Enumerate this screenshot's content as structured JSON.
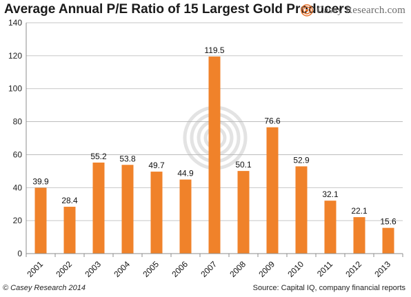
{
  "header": {
    "title": "Average Annual P/E Ratio of 15 Largest Gold Producers",
    "brand": "Casey Research.com"
  },
  "footer": {
    "copyright": "© Casey Research 2014",
    "source": "Source: Capital IQ, company financial reports"
  },
  "colors": {
    "bar": "#f0822a",
    "axis": "#8c8c8c",
    "grid": "#b3b3b3",
    "watermark": "#e3e3e3",
    "brand_logo": "#e8712a"
  },
  "chart_data": {
    "type": "bar",
    "title": "Average Annual P/E Ratio of 15 Largest Gold Producers",
    "categories": [
      "2001",
      "2002",
      "2003",
      "2004",
      "2005",
      "2006",
      "2007",
      "2008",
      "2009",
      "2010",
      "2011",
      "2012",
      "2013"
    ],
    "values": [
      39.9,
      28.4,
      55.2,
      53.8,
      49.7,
      44.9,
      119.5,
      50.1,
      76.6,
      52.9,
      32.1,
      22.1,
      15.6
    ],
    "data_labels": [
      "39.9",
      "28.4",
      "55.2",
      "53.8",
      "49.7",
      "44.9",
      "119.5",
      "50.1",
      "76.6",
      "52.9",
      "32.1",
      "22.1",
      "15.6"
    ],
    "xlabel": "",
    "ylabel": "",
    "ylim": [
      0,
      140
    ],
    "yticks": [
      0,
      20,
      40,
      60,
      80,
      100,
      120,
      140
    ],
    "grid": true,
    "legend": "none"
  }
}
